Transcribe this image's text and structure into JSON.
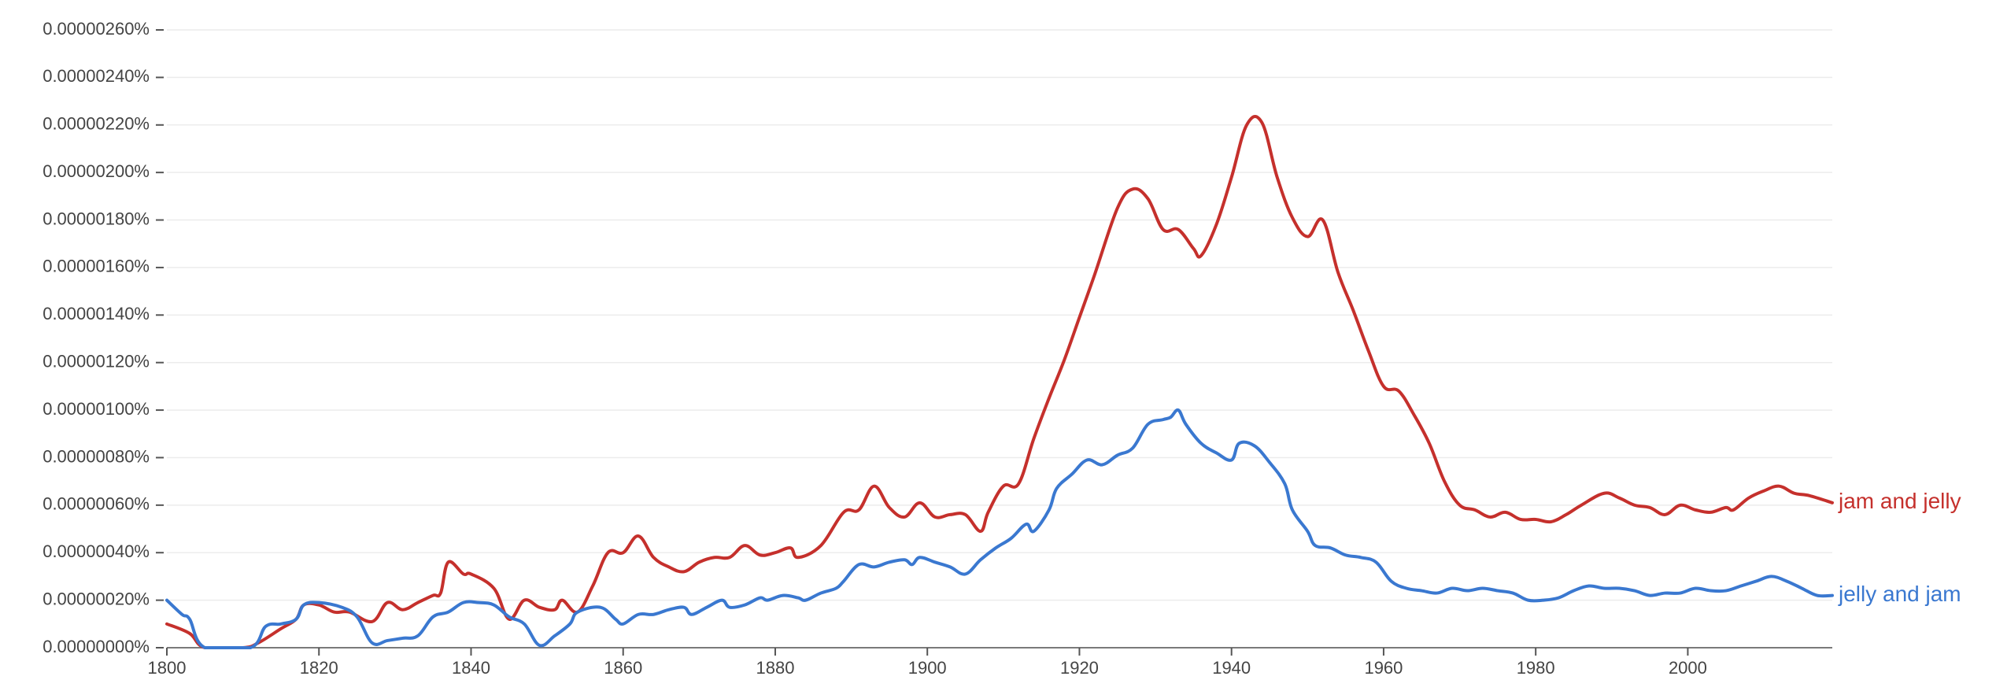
{
  "chart_data": {
    "type": "line",
    "title": "",
    "xlabel": "",
    "ylabel": "",
    "xlim": [
      1800,
      2019
    ],
    "ylim": [
      0,
      2.6e-06
    ],
    "x_ticks": [
      1800,
      1820,
      1840,
      1860,
      1880,
      1900,
      1920,
      1940,
      1960,
      1980,
      2000
    ],
    "x_tick_labels": [
      "1800",
      "1820",
      "1840",
      "1860",
      "1880",
      "1900",
      "1920",
      "1940",
      "1960",
      "1980",
      "2000"
    ],
    "y_ticks": [
      0,
      2e-07,
      4e-07,
      6e-07,
      8e-07,
      1e-06,
      1.2e-06,
      1.4e-06,
      1.6e-06,
      1.8e-06,
      2e-06,
      2.2e-06,
      2.4e-06,
      2.6e-06
    ],
    "y_tick_labels": [
      "0.00000000%",
      "0.00000020%",
      "0.00000040%",
      "0.00000060%",
      "0.00000080%",
      "0.00000100%",
      "0.00000120%",
      "0.00000140%",
      "0.00000160%",
      "0.00000180%",
      "0.00000200%",
      "0.00000220%",
      "0.00000240%",
      "0.00000260%"
    ],
    "grid": true,
    "legend": "line-end labels",
    "series": [
      {
        "name": "jam and jelly",
        "color": "#c5302c",
        "points": [
          [
            1800,
            1e-07
          ],
          [
            1803,
            6e-08
          ],
          [
            1805,
            0.0
          ],
          [
            1810,
            0.0
          ],
          [
            1812,
            2e-08
          ],
          [
            1815,
            8e-08
          ],
          [
            1817,
            1.2e-07
          ],
          [
            1818,
            1.8e-07
          ],
          [
            1820,
            1.8e-07
          ],
          [
            1822,
            1.5e-07
          ],
          [
            1824,
            1.5e-07
          ],
          [
            1827,
            1.1e-07
          ],
          [
            1829,
            1.9e-07
          ],
          [
            1831,
            1.6e-07
          ],
          [
            1833,
            1.9e-07
          ],
          [
            1835,
            2.2e-07
          ],
          [
            1836,
            2.3e-07
          ],
          [
            1837,
            3.6e-07
          ],
          [
            1839,
            3.1e-07
          ],
          [
            1840,
            3.1e-07
          ],
          [
            1843,
            2.5e-07
          ],
          [
            1845,
            1.2e-07
          ],
          [
            1847,
            2e-07
          ],
          [
            1849,
            1.7e-07
          ],
          [
            1851,
            1.6e-07
          ],
          [
            1852,
            2e-07
          ],
          [
            1854,
            1.5e-07
          ],
          [
            1856,
            2.6e-07
          ],
          [
            1858,
            4e-07
          ],
          [
            1860,
            4e-07
          ],
          [
            1862,
            4.7e-07
          ],
          [
            1864,
            3.8e-07
          ],
          [
            1866,
            3.4e-07
          ],
          [
            1868,
            3.2e-07
          ],
          [
            1870,
            3.6e-07
          ],
          [
            1872,
            3.8e-07
          ],
          [
            1874,
            3.8e-07
          ],
          [
            1876,
            4.3e-07
          ],
          [
            1878,
            3.9e-07
          ],
          [
            1880,
            4e-07
          ],
          [
            1882,
            4.2e-07
          ],
          [
            1883,
            3.8e-07
          ],
          [
            1886,
            4.3e-07
          ],
          [
            1889,
            5.7e-07
          ],
          [
            1891,
            5.8e-07
          ],
          [
            1893,
            6.8e-07
          ],
          [
            1895,
            5.9e-07
          ],
          [
            1897,
            5.5e-07
          ],
          [
            1899,
            6.1e-07
          ],
          [
            1901,
            5.5e-07
          ],
          [
            1903,
            5.6e-07
          ],
          [
            1905,
            5.6e-07
          ],
          [
            1907,
            4.9e-07
          ],
          [
            1908,
            5.7e-07
          ],
          [
            1910,
            6.8e-07
          ],
          [
            1912,
            6.9e-07
          ],
          [
            1914,
            8.8e-07
          ],
          [
            1916,
            1.05e-06
          ],
          [
            1918,
            1.21e-06
          ],
          [
            1920,
            1.39e-06
          ],
          [
            1922,
            1.57e-06
          ],
          [
            1925,
            1.85e-06
          ],
          [
            1927,
            1.93e-06
          ],
          [
            1929,
            1.89e-06
          ],
          [
            1931,
            1.76e-06
          ],
          [
            1933,
            1.76e-06
          ],
          [
            1935,
            1.68e-06
          ],
          [
            1936,
            1.65e-06
          ],
          [
            1938,
            1.78e-06
          ],
          [
            1940,
            1.98e-06
          ],
          [
            1942,
            2.2e-06
          ],
          [
            1944,
            2.21e-06
          ],
          [
            1946,
            1.98e-06
          ],
          [
            1948,
            1.81e-06
          ],
          [
            1950,
            1.73e-06
          ],
          [
            1952,
            1.8e-06
          ],
          [
            1954,
            1.58e-06
          ],
          [
            1956,
            1.42e-06
          ],
          [
            1958,
            1.25e-06
          ],
          [
            1960,
            1.1e-06
          ],
          [
            1962,
            1.08e-06
          ],
          [
            1964,
            9.8e-07
          ],
          [
            1966,
            8.6e-07
          ],
          [
            1968,
            7e-07
          ],
          [
            1970,
            6e-07
          ],
          [
            1972,
            5.8e-07
          ],
          [
            1974,
            5.5e-07
          ],
          [
            1976,
            5.7e-07
          ],
          [
            1978,
            5.4e-07
          ],
          [
            1980,
            5.4e-07
          ],
          [
            1982,
            5.3e-07
          ],
          [
            1984,
            5.6e-07
          ],
          [
            1986,
            6e-07
          ],
          [
            1989,
            6.5e-07
          ],
          [
            1991,
            6.3e-07
          ],
          [
            1993,
            6e-07
          ],
          [
            1995,
            5.9e-07
          ],
          [
            1997,
            5.6e-07
          ],
          [
            1999,
            6e-07
          ],
          [
            2001,
            5.8e-07
          ],
          [
            2003,
            5.7e-07
          ],
          [
            2005,
            5.9e-07
          ],
          [
            2006,
            5.8e-07
          ],
          [
            2008,
            6.3e-07
          ],
          [
            2010,
            6.6e-07
          ],
          [
            2012,
            6.8e-07
          ],
          [
            2014,
            6.5e-07
          ],
          [
            2016,
            6.4e-07
          ],
          [
            2019,
            6.1e-07
          ]
        ]
      },
      {
        "name": "jelly and jam",
        "color": "#3a78d0",
        "points": [
          [
            1800,
            2e-07
          ],
          [
            1802,
            1.4e-07
          ],
          [
            1803,
            1.2e-07
          ],
          [
            1805,
            0.0
          ],
          [
            1811,
            0.0
          ],
          [
            1813,
            9e-08
          ],
          [
            1815,
            1e-07
          ],
          [
            1817,
            1.2e-07
          ],
          [
            1818,
            1.8e-07
          ],
          [
            1820,
            1.9e-07
          ],
          [
            1823,
            1.7e-07
          ],
          [
            1825,
            1.3e-07
          ],
          [
            1827,
            2e-08
          ],
          [
            1829,
            3e-08
          ],
          [
            1831,
            4e-08
          ],
          [
            1833,
            5e-08
          ],
          [
            1835,
            1.3e-07
          ],
          [
            1837,
            1.5e-07
          ],
          [
            1839,
            1.9e-07
          ],
          [
            1841,
            1.9e-07
          ],
          [
            1843,
            1.8e-07
          ],
          [
            1845,
            1.3e-07
          ],
          [
            1847,
            1e-07
          ],
          [
            1849,
            1e-08
          ],
          [
            1851,
            5e-08
          ],
          [
            1853,
            1e-07
          ],
          [
            1854,
            1.5e-07
          ],
          [
            1857,
            1.7e-07
          ],
          [
            1859,
            1.2e-07
          ],
          [
            1860,
            1e-07
          ],
          [
            1862,
            1.4e-07
          ],
          [
            1864,
            1.4e-07
          ],
          [
            1866,
            1.6e-07
          ],
          [
            1868,
            1.7e-07
          ],
          [
            1869,
            1.4e-07
          ],
          [
            1871,
            1.7e-07
          ],
          [
            1873,
            2e-07
          ],
          [
            1874,
            1.7e-07
          ],
          [
            1876,
            1.8e-07
          ],
          [
            1878,
            2.1e-07
          ],
          [
            1879,
            2e-07
          ],
          [
            1881,
            2.2e-07
          ],
          [
            1883,
            2.1e-07
          ],
          [
            1884,
            2e-07
          ],
          [
            1886,
            2.3e-07
          ],
          [
            1888,
            2.5e-07
          ],
          [
            1889,
            2.8e-07
          ],
          [
            1891,
            3.5e-07
          ],
          [
            1893,
            3.4e-07
          ],
          [
            1895,
            3.6e-07
          ],
          [
            1897,
            3.7e-07
          ],
          [
            1898,
            3.5e-07
          ],
          [
            1899,
            3.8e-07
          ],
          [
            1901,
            3.6e-07
          ],
          [
            1903,
            3.4e-07
          ],
          [
            1905,
            3.1e-07
          ],
          [
            1907,
            3.7e-07
          ],
          [
            1909,
            4.2e-07
          ],
          [
            1911,
            4.6e-07
          ],
          [
            1913,
            5.2e-07
          ],
          [
            1914,
            4.9e-07
          ],
          [
            1916,
            5.8e-07
          ],
          [
            1917,
            6.7e-07
          ],
          [
            1919,
            7.3e-07
          ],
          [
            1921,
            7.9e-07
          ],
          [
            1923,
            7.7e-07
          ],
          [
            1925,
            8.1e-07
          ],
          [
            1927,
            8.4e-07
          ],
          [
            1929,
            9.4e-07
          ],
          [
            1931,
            9.6e-07
          ],
          [
            1932,
            9.7e-07
          ],
          [
            1933,
            1e-06
          ],
          [
            1934,
            9.4e-07
          ],
          [
            1936,
            8.6e-07
          ],
          [
            1938,
            8.2e-07
          ],
          [
            1940,
            7.9e-07
          ],
          [
            1941,
            8.6e-07
          ],
          [
            1943,
            8.5e-07
          ],
          [
            1945,
            7.8e-07
          ],
          [
            1947,
            6.9e-07
          ],
          [
            1948,
            5.8e-07
          ],
          [
            1950,
            4.9e-07
          ],
          [
            1951,
            4.3e-07
          ],
          [
            1953,
            4.2e-07
          ],
          [
            1955,
            3.9e-07
          ],
          [
            1957,
            3.8e-07
          ],
          [
            1959,
            3.6e-07
          ],
          [
            1961,
            2.8e-07
          ],
          [
            1963,
            2.5e-07
          ],
          [
            1965,
            2.4e-07
          ],
          [
            1967,
            2.3e-07
          ],
          [
            1969,
            2.5e-07
          ],
          [
            1971,
            2.4e-07
          ],
          [
            1973,
            2.5e-07
          ],
          [
            1975,
            2.4e-07
          ],
          [
            1977,
            2.3e-07
          ],
          [
            1979,
            2e-07
          ],
          [
            1981,
            2e-07
          ],
          [
            1983,
            2.1e-07
          ],
          [
            1985,
            2.4e-07
          ],
          [
            1987,
            2.6e-07
          ],
          [
            1989,
            2.5e-07
          ],
          [
            1991,
            2.5e-07
          ],
          [
            1993,
            2.4e-07
          ],
          [
            1995,
            2.2e-07
          ],
          [
            1997,
            2.3e-07
          ],
          [
            1999,
            2.3e-07
          ],
          [
            2001,
            2.5e-07
          ],
          [
            2003,
            2.4e-07
          ],
          [
            2005,
            2.4e-07
          ],
          [
            2007,
            2.6e-07
          ],
          [
            2009,
            2.8e-07
          ],
          [
            2011,
            3e-07
          ],
          [
            2013,
            2.8e-07
          ],
          [
            2015,
            2.5e-07
          ],
          [
            2017,
            2.2e-07
          ],
          [
            2019,
            2.2e-07
          ]
        ]
      }
    ]
  }
}
